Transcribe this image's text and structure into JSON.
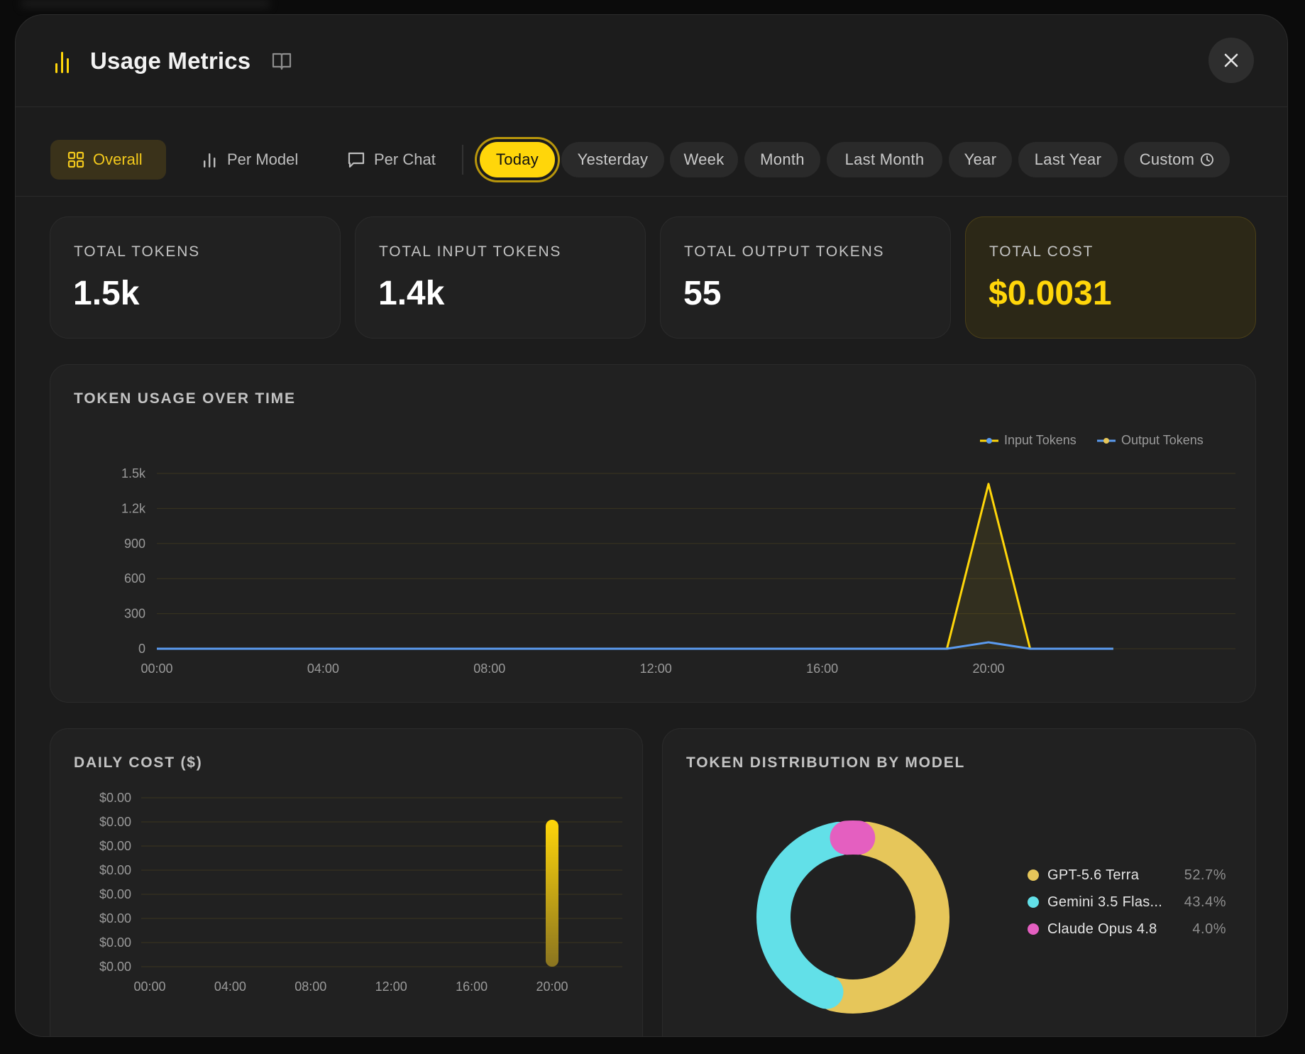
{
  "header": {
    "title": "Usage Metrics",
    "title_icon": "bar-chart-icon",
    "docs_icon": "book-icon",
    "close_icon": "close-icon"
  },
  "view_tabs": [
    {
      "label": "Overall",
      "icon": "grid-icon",
      "active": true
    },
    {
      "label": "Per Model",
      "icon": "bar-chart-icon",
      "active": false
    },
    {
      "label": "Per Chat",
      "icon": "chat-bubble-icon",
      "active": false
    }
  ],
  "periods": [
    {
      "label": "Today",
      "active": true
    },
    {
      "label": "Yesterday"
    },
    {
      "label": "Week"
    },
    {
      "label": "Month"
    },
    {
      "label": "Last Month"
    },
    {
      "label": "Year"
    },
    {
      "label": "Last Year"
    },
    {
      "label": "Custom",
      "icon": "clock-icon"
    }
  ],
  "stats": [
    {
      "label": "TOTAL TOKENS",
      "value": "1.5k"
    },
    {
      "label": "TOTAL INPUT TOKENS",
      "value": "1.4k"
    },
    {
      "label": "TOTAL OUTPUT TOKENS",
      "value": "55"
    },
    {
      "label": "TOTAL COST",
      "value": "$0.0031"
    }
  ],
  "colors": {
    "accent": "#ffd60a",
    "input_line": "#ffd60a",
    "output_line": "#5b9bef",
    "gpt": "#e6c65a",
    "gemini": "#62e0e8",
    "claude": "#e45fc0"
  },
  "chart_data": [
    {
      "type": "line",
      "title": "TOKEN USAGE OVER TIME",
      "x": [
        "00:00",
        "01:00",
        "02:00",
        "03:00",
        "04:00",
        "05:00",
        "06:00",
        "07:00",
        "08:00",
        "09:00",
        "10:00",
        "11:00",
        "12:00",
        "13:00",
        "14:00",
        "15:00",
        "16:00",
        "17:00",
        "18:00",
        "19:00",
        "20:00",
        "21:00",
        "22:00",
        "23:00"
      ],
      "x_ticks": [
        "00:00",
        "04:00",
        "08:00",
        "12:00",
        "16:00",
        "20:00"
      ],
      "y_ticks": [
        "0",
        "300",
        "600",
        "900",
        "1.2k",
        "1.5k"
      ],
      "ylim": [
        0,
        1500
      ],
      "grid": true,
      "legend": "top-right",
      "series": [
        {
          "name": "Input Tokens",
          "values": [
            0,
            0,
            0,
            0,
            0,
            0,
            0,
            0,
            0,
            0,
            0,
            0,
            0,
            0,
            0,
            0,
            0,
            0,
            0,
            0,
            1410,
            0,
            0,
            0
          ]
        },
        {
          "name": "Output Tokens",
          "values": [
            0,
            0,
            0,
            0,
            0,
            0,
            0,
            0,
            0,
            0,
            0,
            0,
            0,
            0,
            0,
            0,
            0,
            0,
            0,
            0,
            55,
            0,
            0,
            0
          ]
        }
      ]
    },
    {
      "type": "bar",
      "title": "DAILY COST ($)",
      "categories": [
        "20:00"
      ],
      "values": [
        0.0031
      ],
      "x_ticks": [
        "00:00",
        "04:00",
        "08:00",
        "12:00",
        "16:00",
        "20:00"
      ],
      "y_ticks": [
        "$0.00",
        "$0.00",
        "$0.00",
        "$0.00",
        "$0.00",
        "$0.00",
        "$0.00",
        "$0.00"
      ],
      "grid": true
    },
    {
      "type": "pie",
      "title": "TOKEN DISTRIBUTION BY MODEL",
      "legend": "right",
      "slices": [
        {
          "label": "GPT-5.6 Terra",
          "value": 52.7,
          "pct": "52.7%"
        },
        {
          "label": "Gemini 3.5 Flas...",
          "value": 43.4,
          "pct": "43.4%"
        },
        {
          "label": "Claude Opus 4.8",
          "value": 4.0,
          "pct": "4.0%"
        }
      ]
    }
  ]
}
